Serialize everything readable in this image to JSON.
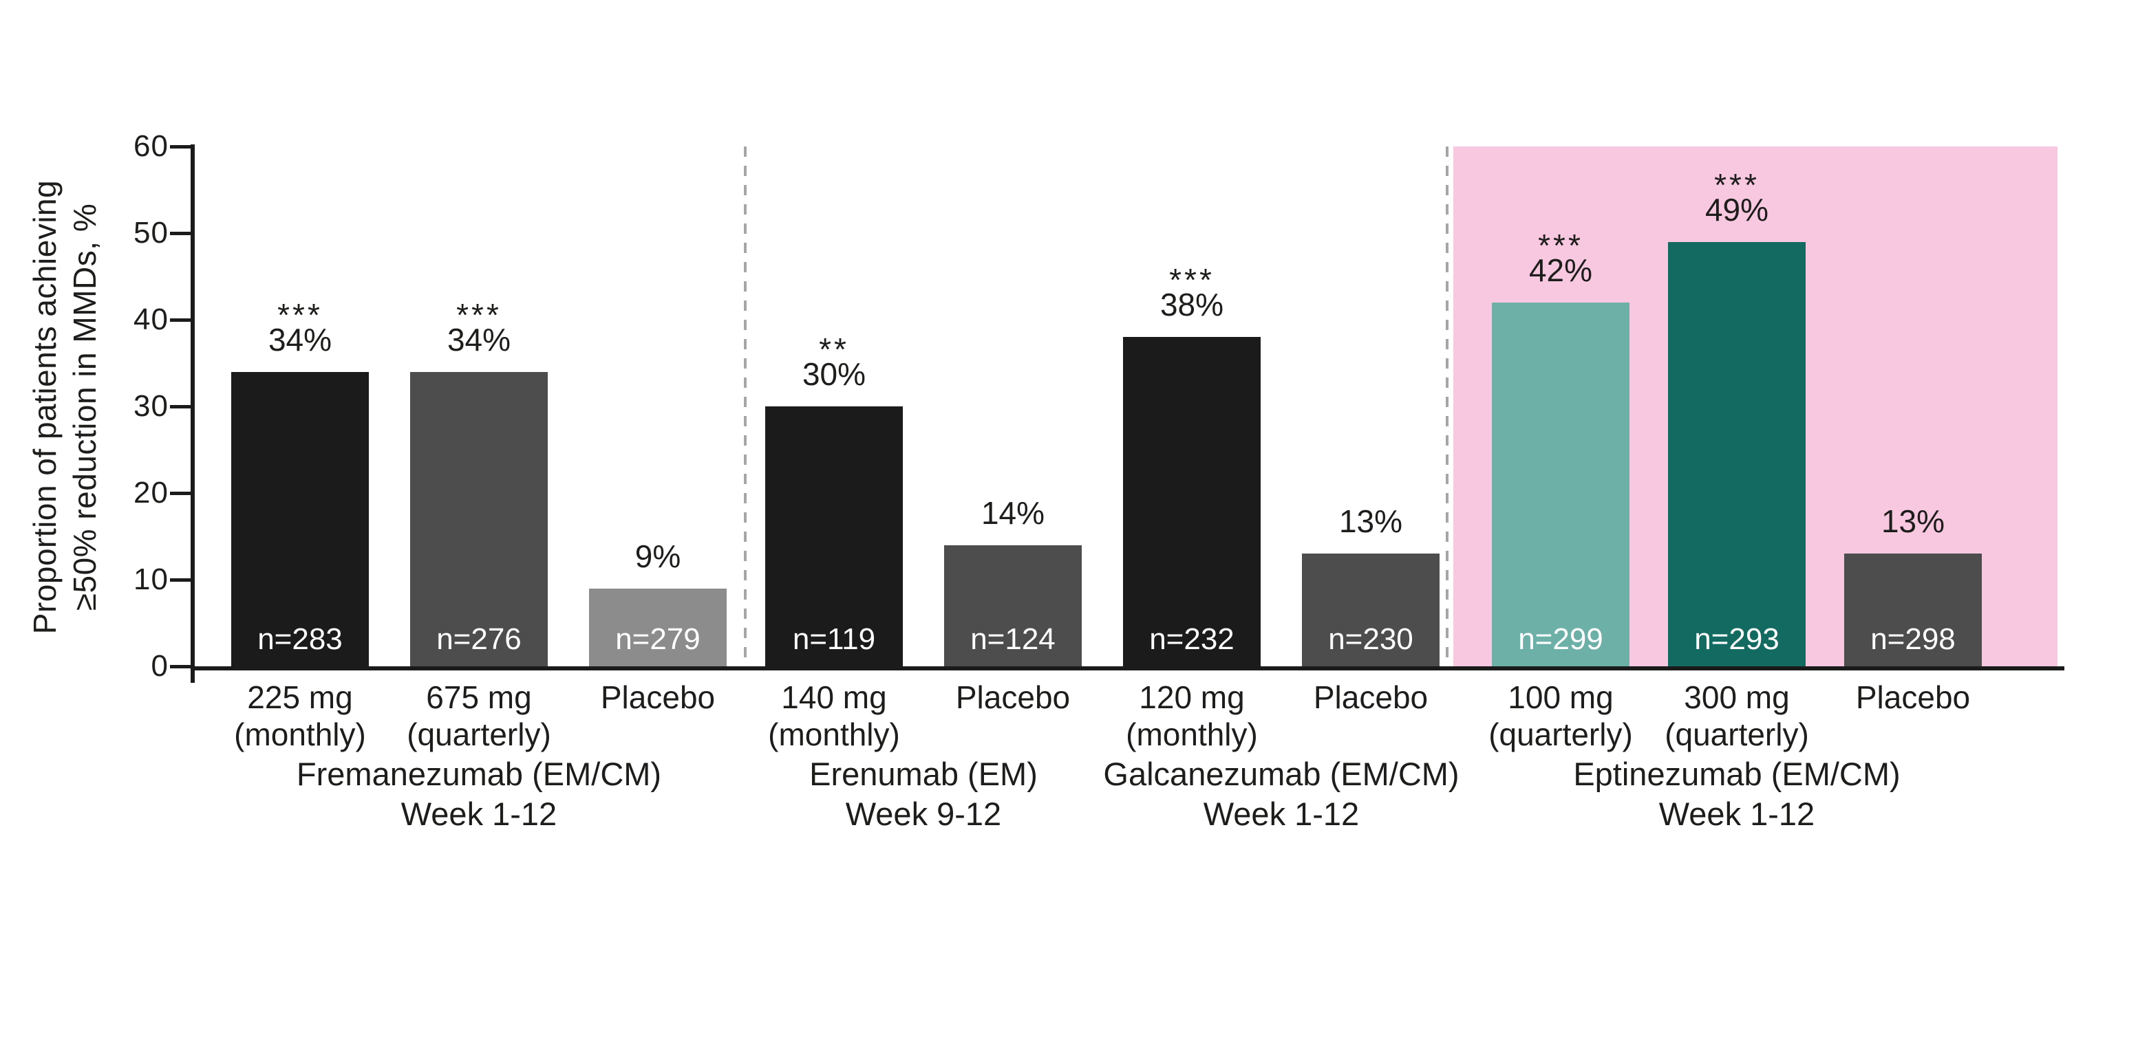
{
  "colors": {
    "bar_black": "#1b1b1b",
    "bar_dark_gray": "#4d4d4d",
    "bar_mid_gray": "#8c8c8c",
    "bar_teal_light": "#6cb0a8",
    "bar_teal_dark": "#136a60",
    "highlight_pink": "#f8c8e0",
    "divider_gray": "#a6a6a6",
    "axis_black": "#1b1b1b",
    "n_label_white": "#ffffff"
  },
  "y_axis": {
    "label_line1": "Proportion of patients achieving",
    "label_line2": "≥50% reduction in MMDs, %",
    "ticks": [
      "60",
      "50",
      "40",
      "30",
      "20",
      "10",
      "0"
    ]
  },
  "chart_data": {
    "type": "bar",
    "title": "",
    "ylabel": "Proportion of patients achieving ≥50% reduction in MMDs, %",
    "xlabel": "",
    "ylim": [
      0,
      60
    ],
    "yticks": [
      0,
      10,
      20,
      30,
      40,
      50,
      60
    ],
    "grid": false,
    "legend": "none",
    "groups": [
      {
        "name": "Fremanezumab (EM/CM)",
        "week": "Week 1-12",
        "highlighted": false,
        "bars": [
          {
            "label_line1": "225 mg",
            "label_line2": "(monthly)",
            "value": 34,
            "value_label": "34%",
            "sig": "***",
            "n_label": "n=283",
            "color_key": "bar_black"
          },
          {
            "label_line1": "675 mg",
            "label_line2": "(quarterly)",
            "value": 34,
            "value_label": "34%",
            "sig": "***",
            "n_label": "n=276",
            "color_key": "bar_dark_gray"
          },
          {
            "label_line1": "Placebo",
            "label_line2": "",
            "value": 9,
            "value_label": "9%",
            "sig": "",
            "n_label": "n=279",
            "color_key": "bar_mid_gray"
          }
        ]
      },
      {
        "name": "Erenumab (EM)",
        "week": "Week 9-12",
        "highlighted": false,
        "bars": [
          {
            "label_line1": "140 mg",
            "label_line2": "(monthly)",
            "value": 30,
            "value_label": "30%",
            "sig": "**",
            "n_label": "n=119",
            "color_key": "bar_black"
          },
          {
            "label_line1": "Placebo",
            "label_line2": "",
            "value": 14,
            "value_label": "14%",
            "sig": "",
            "n_label": "n=124",
            "color_key": "bar_dark_gray"
          }
        ]
      },
      {
        "name": "Galcanezumab (EM/CM)",
        "week": "Week 1-12",
        "highlighted": false,
        "bars": [
          {
            "label_line1": "120 mg",
            "label_line2": "(monthly)",
            "value": 38,
            "value_label": "38%",
            "sig": "***",
            "n_label": "n=232",
            "color_key": "bar_black"
          },
          {
            "label_line1": "Placebo",
            "label_line2": "",
            "value": 13,
            "value_label": "13%",
            "sig": "",
            "n_label": "n=230",
            "color_key": "bar_dark_gray"
          }
        ]
      },
      {
        "name": "Eptinezumab (EM/CM)",
        "week": "Week 1-12",
        "highlighted": true,
        "bars": [
          {
            "label_line1": "100 mg",
            "label_line2": "(quarterly)",
            "value": 42,
            "value_label": "42%",
            "sig": "***",
            "n_label": "n=299",
            "color_key": "bar_teal_light"
          },
          {
            "label_line1": "300 mg",
            "label_line2": "(quarterly)",
            "value": 49,
            "value_label": "49%",
            "sig": "***",
            "n_label": "n=293",
            "color_key": "bar_teal_dark"
          },
          {
            "label_line1": "Placebo",
            "label_line2": "",
            "value": 13,
            "value_label": "13%",
            "sig": "",
            "n_label": "n=298",
            "color_key": "bar_dark_gray"
          }
        ]
      }
    ]
  }
}
